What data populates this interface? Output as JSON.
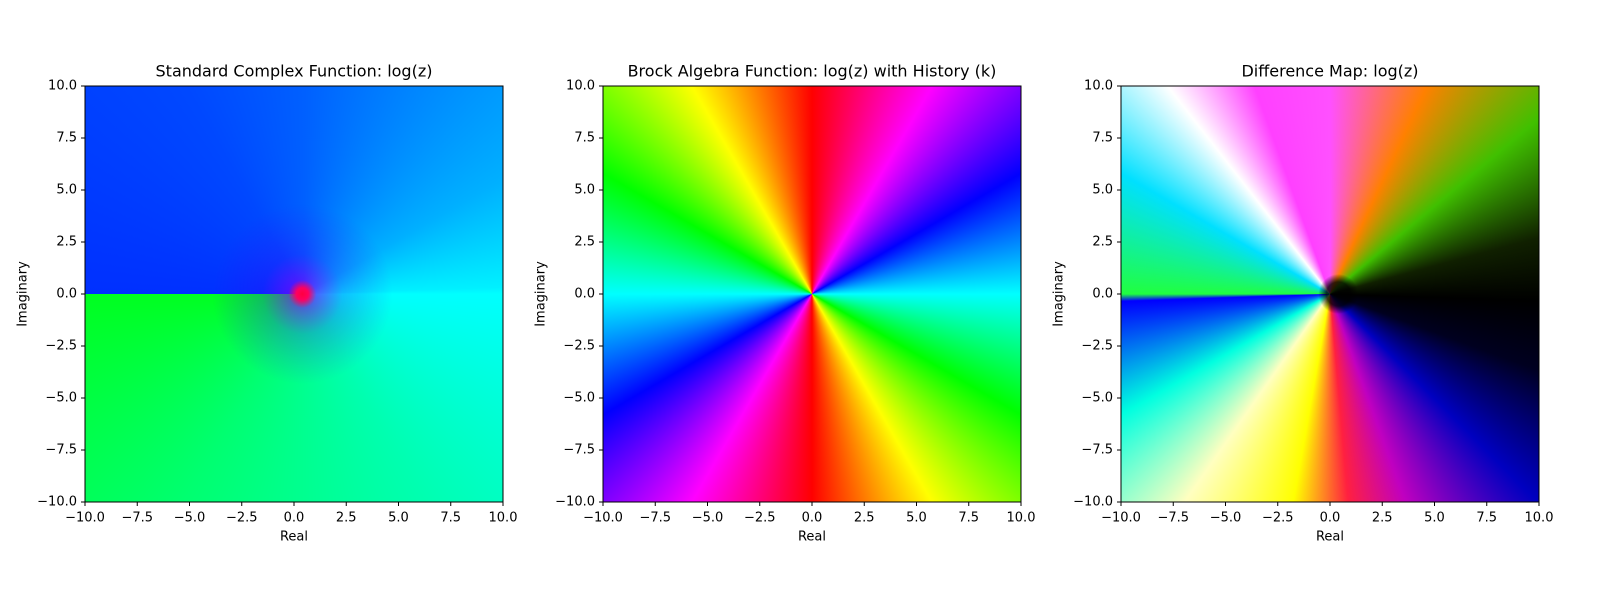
{
  "chart_data": [
    {
      "type": "image",
      "title": "Standard Complex Function: log(z)",
      "xlabel": "Real",
      "ylabel": "Imaginary",
      "xlim": [
        -10,
        10
      ],
      "ylim": [
        -10,
        10
      ],
      "xticks": [
        {
          "value": -10,
          "label": "−10.0"
        },
        {
          "value": -7.5,
          "label": "−7.5"
        },
        {
          "value": -5,
          "label": "−5.0"
        },
        {
          "value": -2.5,
          "label": "−2.5"
        },
        {
          "value": 0,
          "label": "0.0"
        },
        2.5,
        {
          "value": 5,
          "label": "5.0"
        },
        7.5,
        {
          "value": 10,
          "label": "10.0"
        }
      ],
      "yticks": [
        {
          "value": -10,
          "label": "−10.0"
        },
        {
          "value": -7.5,
          "label": "−7.5"
        },
        {
          "value": -5,
          "label": "−5.0"
        },
        {
          "value": -2.5,
          "label": "−2.5"
        },
        {
          "value": 0,
          "label": "0.0"
        },
        2.5,
        {
          "value": 5,
          "label": "5.0"
        },
        7.5,
        {
          "value": 10,
          "label": "10.0"
        }
      ]
    },
    {
      "type": "image",
      "title": "Brock Algebra Function: log(z) with History (k)",
      "xlabel": "Real",
      "ylabel": "Imaginary",
      "xlim": [
        -10,
        10
      ],
      "ylim": [
        -10,
        10
      ],
      "xticks": [
        {
          "value": -10,
          "label": "−10.0"
        },
        {
          "value": -7.5,
          "label": "−7.5"
        },
        {
          "value": -5,
          "label": "−5.0"
        },
        {
          "value": -2.5,
          "label": "−2.5"
        },
        {
          "value": 0,
          "label": "0.0"
        },
        2.5,
        {
          "value": 5,
          "label": "5.0"
        },
        7.5,
        {
          "value": 10,
          "label": "10.0"
        }
      ],
      "yticks": [
        {
          "value": -10,
          "label": "−10.0"
        },
        {
          "value": -7.5,
          "label": "−7.5"
        },
        {
          "value": -5,
          "label": "−5.0"
        },
        {
          "value": -2.5,
          "label": "−2.5"
        },
        {
          "value": 0,
          "label": "0.0"
        },
        2.5,
        {
          "value": 5,
          "label": "5.0"
        },
        7.5,
        {
          "value": 10,
          "label": "10.0"
        }
      ]
    },
    {
      "type": "image",
      "title": "Difference Map: log(z)",
      "xlabel": "Real",
      "ylabel": "Imaginary",
      "xlim": [
        -10,
        10
      ],
      "ylim": [
        -10,
        10
      ],
      "xticks": [
        {
          "value": -10,
          "label": "−10.0"
        },
        {
          "value": -7.5,
          "label": "−7.5"
        },
        {
          "value": -5,
          "label": "−5.0"
        },
        {
          "value": -2.5,
          "label": "−2.5"
        },
        {
          "value": 0,
          "label": "0.0"
        },
        2.5,
        {
          "value": 5,
          "label": "5.0"
        },
        7.5,
        {
          "value": 10,
          "label": "10.0"
        }
      ],
      "yticks": [
        {
          "value": -10,
          "label": "−10.0"
        },
        {
          "value": -7.5,
          "label": "−7.5"
        },
        {
          "value": -5,
          "label": "−5.0"
        },
        {
          "value": -2.5,
          "label": "−2.5"
        },
        {
          "value": 0,
          "label": "0.0"
        },
        2.5,
        {
          "value": 5,
          "label": "5.0"
        },
        7.5,
        {
          "value": 10,
          "label": "10.0"
        }
      ]
    }
  ]
}
